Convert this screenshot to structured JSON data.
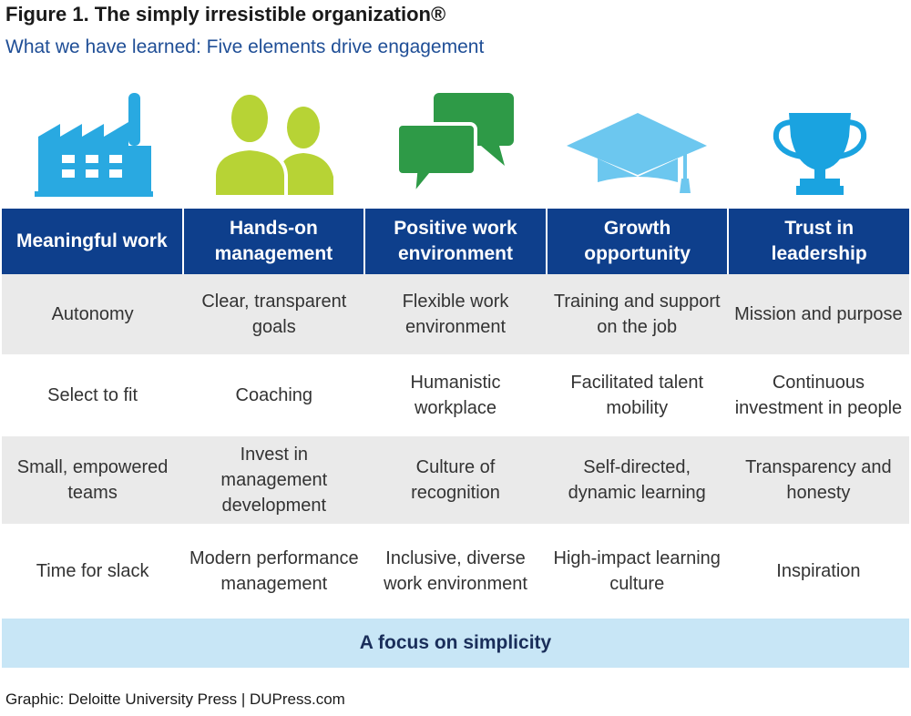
{
  "title": "Figure 1. The simply irresistible organization®",
  "subtitle": "What we have learned: Five elements drive engagement",
  "icons": [
    {
      "name": "factory-icon",
      "color": "#29a9e1"
    },
    {
      "name": "people-icon",
      "color": "#b7d335"
    },
    {
      "name": "chat-bubbles-icon",
      "color": "#2e9a47"
    },
    {
      "name": "graduation-cap-icon",
      "color": "#6cc7ef"
    },
    {
      "name": "trophy-icon",
      "color": "#1aa3e0"
    }
  ],
  "colors": {
    "header": "#0e3f8c",
    "band": "#c8e6f6",
    "row_alt": "#eaeaea"
  },
  "columns": [
    "Meaningful work",
    "Hands-on management",
    "Positive work environment",
    "Growth opportunity",
    "Trust in leadership"
  ],
  "rows": [
    [
      "Autonomy",
      "Clear, transparent goals",
      "Flexible work environment",
      "Training and support on the job",
      "Mission and purpose"
    ],
    [
      "Select to fit",
      "Coaching",
      "Humanistic workplace",
      "Facilitated talent mobility",
      "Continuous investment in people"
    ],
    [
      "Small, empowered teams",
      "Invest in management development",
      "Culture of recognition",
      "Self-directed, dynamic learning",
      "Transparency and honesty"
    ],
    [
      "Time for slack",
      "Modern performance management",
      "Inclusive, diverse work environment",
      "High-impact learning culture",
      "Inspiration"
    ]
  ],
  "footer": "A focus on simplicity",
  "credit": "Graphic: Deloitte University Press  |  DUPress.com"
}
